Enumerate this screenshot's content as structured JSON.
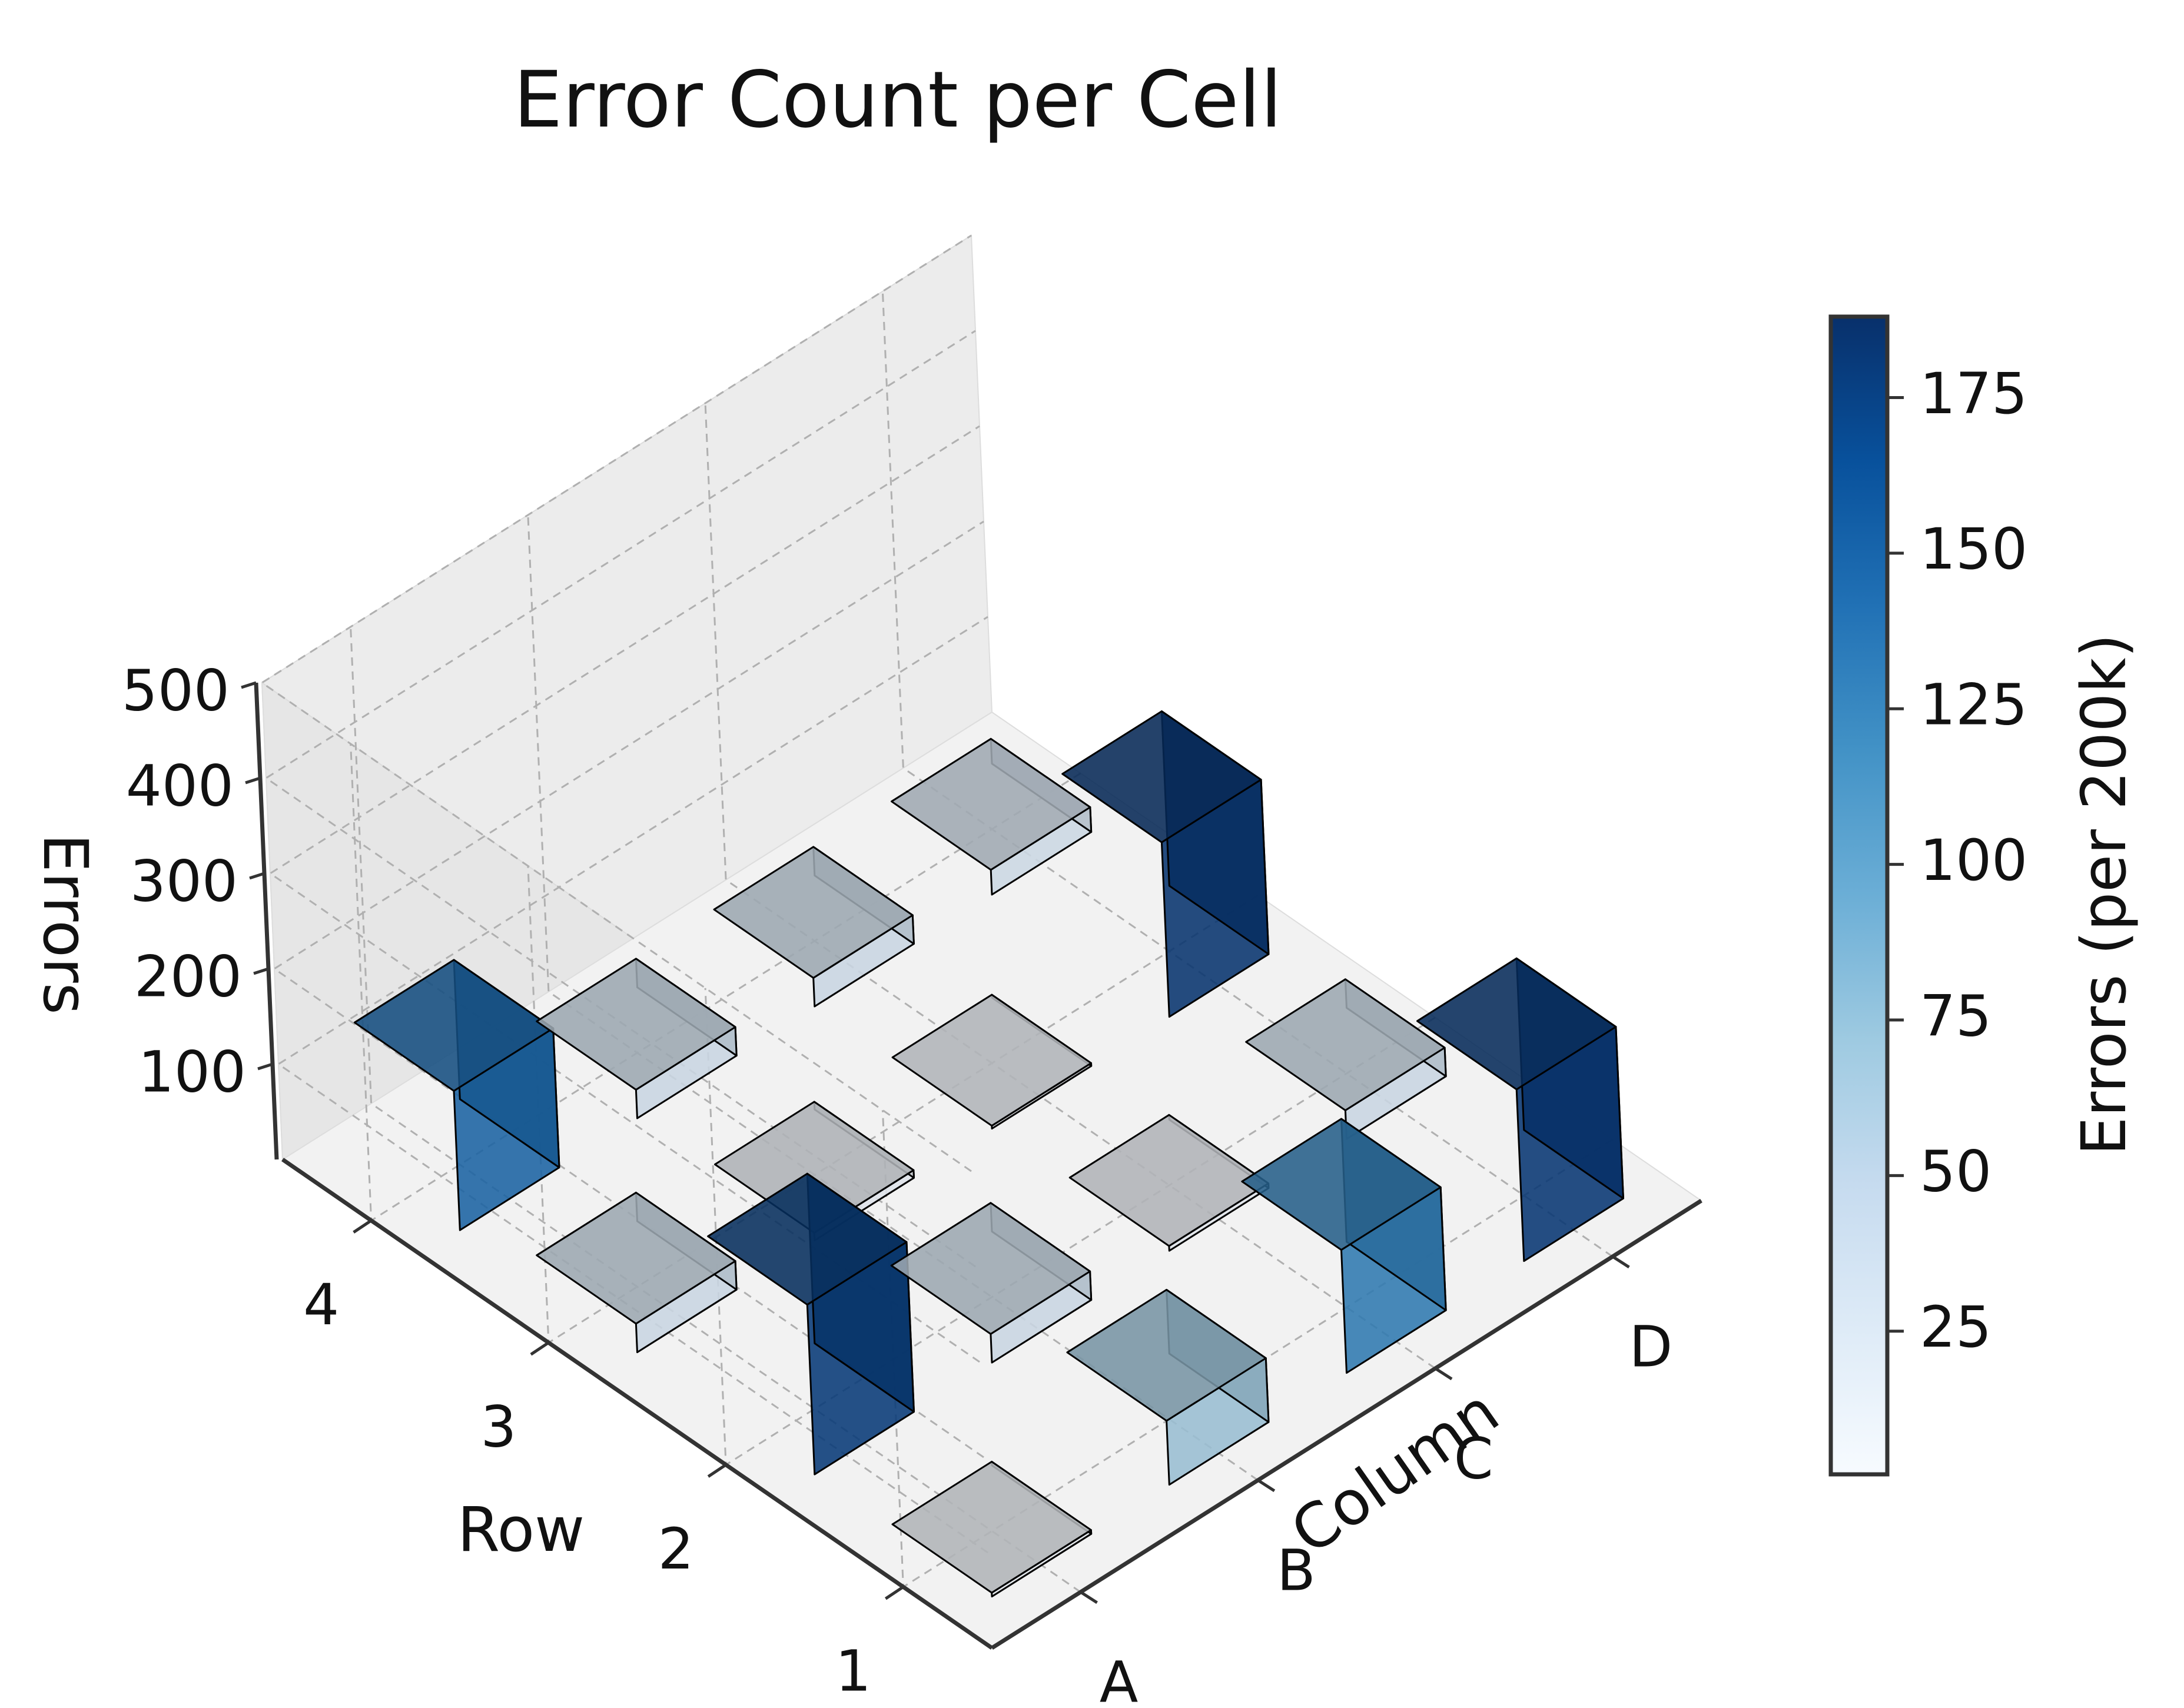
{
  "chart_data": {
    "type": "bar3d",
    "title": "Error Count per Cell",
    "xlabel": "Column",
    "ylabel": "Row",
    "zlabel": "Errors",
    "columns": [
      "A",
      "B",
      "C",
      "D"
    ],
    "rows": [
      "1",
      "2",
      "3",
      "4"
    ],
    "zticks": [
      100,
      200,
      300,
      400,
      500
    ],
    "zlim": [
      0,
      500
    ],
    "bars": [
      {
        "row": "1",
        "column": "A",
        "value": 4
      },
      {
        "row": "1",
        "column": "B",
        "value": 67
      },
      {
        "row": "1",
        "column": "C",
        "value": 129
      },
      {
        "row": "1",
        "column": "D",
        "value": 180
      },
      {
        "row": "2",
        "column": "A",
        "value": 178
      },
      {
        "row": "2",
        "column": "B",
        "value": 30
      },
      {
        "row": "2",
        "column": "C",
        "value": 5
      },
      {
        "row": "2",
        "column": "D",
        "value": 30
      },
      {
        "row": "3",
        "column": "A",
        "value": 30
      },
      {
        "row": "3",
        "column": "B",
        "value": 8
      },
      {
        "row": "3",
        "column": "C",
        "value": 3
      },
      {
        "row": "3",
        "column": "D",
        "value": 183
      },
      {
        "row": "4",
        "column": "A",
        "value": 146
      },
      {
        "row": "4",
        "column": "B",
        "value": 30
      },
      {
        "row": "4",
        "column": "C",
        "value": 30
      },
      {
        "row": "4",
        "column": "D",
        "value": 26
      }
    ],
    "colorbar": {
      "label": "Errors (per 200k)",
      "ticks": [
        25,
        50,
        75,
        100,
        125,
        150,
        175
      ],
      "range": [
        2,
        188
      ],
      "colormap": "Blues",
      "stops": [
        "#f7fbff",
        "#deebf7",
        "#c6dbef",
        "#9ecae1",
        "#6baed6",
        "#4292c6",
        "#2171b5",
        "#08519c",
        "#08306b"
      ]
    },
    "grid": true,
    "view": "3d-perspective"
  }
}
